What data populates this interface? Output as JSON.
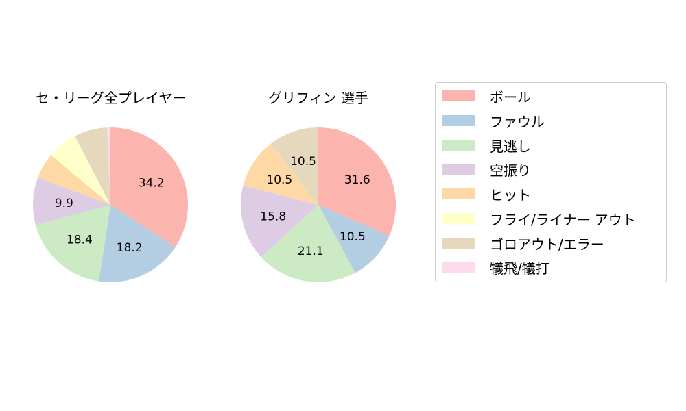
{
  "chart_data": [
    {
      "type": "pie",
      "title": "セ・リーグ全プレイヤー",
      "categories": [
        "ボール",
        "ファウル",
        "見逃し",
        "空振り",
        "ヒット",
        "フライ/ライナー アウト",
        "ゴロアウト/エラー",
        "犠飛/犠打"
      ],
      "values": [
        34.2,
        18.2,
        18.4,
        9.9,
        5.4,
        6.3,
        6.9,
        0.7
      ],
      "labels_shown": [
        "34.2",
        "18.2",
        "18.4",
        "9.9",
        "",
        "",
        "",
        ""
      ]
    },
    {
      "type": "pie",
      "title": "グリフィン 選手",
      "categories": [
        "ボール",
        "ファウル",
        "見逃し",
        "空振り",
        "ヒット",
        "フライ/ライナー アウト",
        "ゴロアウト/エラー",
        "犠飛/犠打"
      ],
      "values": [
        31.6,
        10.5,
        21.1,
        15.8,
        10.5,
        0,
        10.5,
        0
      ],
      "labels_shown": [
        "31.6",
        "10.5",
        "21.1",
        "15.8",
        "10.5",
        "",
        "10.5",
        ""
      ]
    }
  ],
  "legend": {
    "items": [
      {
        "label": "ボール",
        "color": "#fbb4ae"
      },
      {
        "label": "ファウル",
        "color": "#b3cde3"
      },
      {
        "label": "見逃し",
        "color": "#ccebc5"
      },
      {
        "label": "空振り",
        "color": "#decbe4"
      },
      {
        "label": "ヒット",
        "color": "#fed9a6"
      },
      {
        "label": "フライ/ライナー アウト",
        "color": "#ffffcc"
      },
      {
        "label": "ゴロアウト/エラー",
        "color": "#e5d8bd"
      },
      {
        "label": "犠飛/犠打",
        "color": "#fddaec"
      }
    ]
  }
}
